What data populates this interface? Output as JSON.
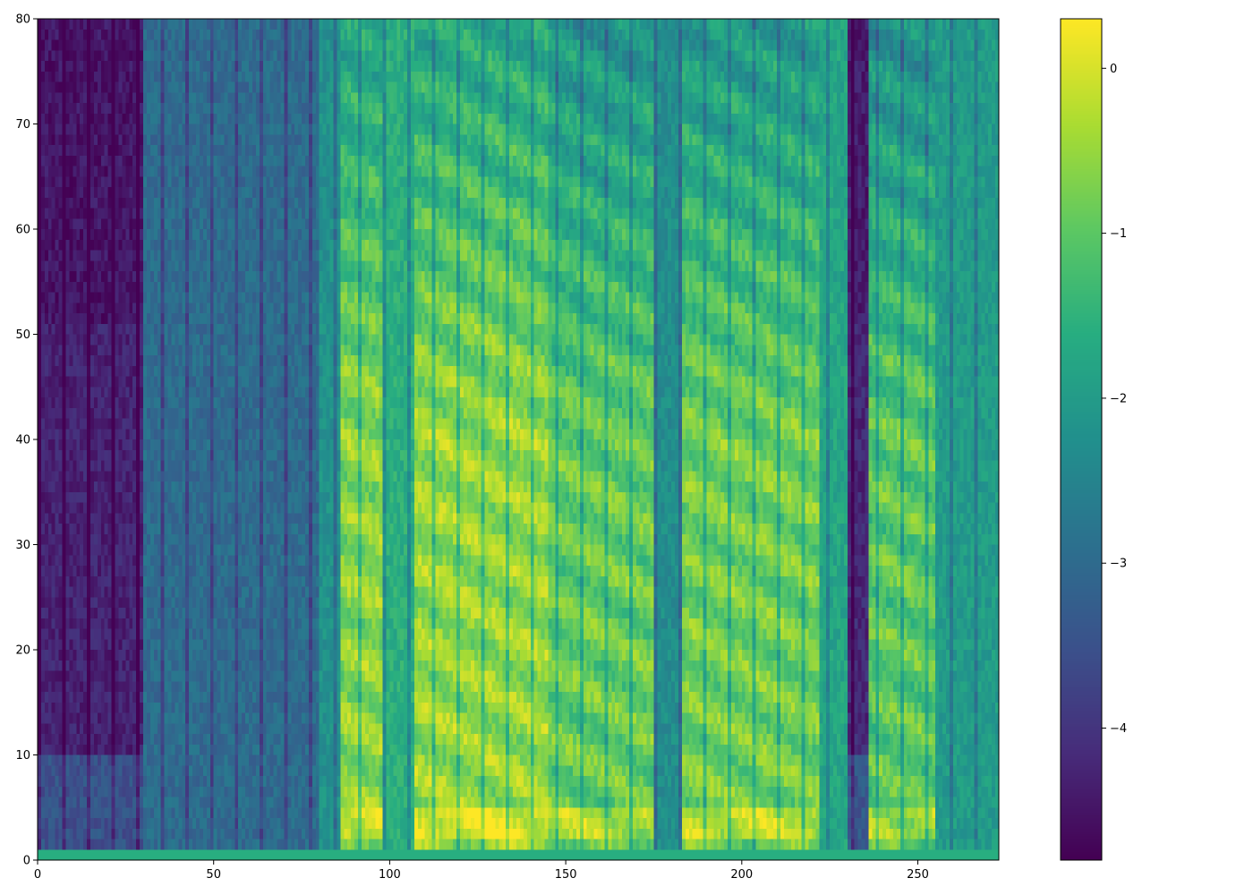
{
  "chart_data": {
    "type": "heatmap",
    "title": "",
    "xlabel": "",
    "ylabel": "",
    "xlim": [
      0,
      273
    ],
    "ylim": [
      0,
      80
    ],
    "x_ticks": [
      "0",
      "50",
      "100",
      "150",
      "200",
      "250"
    ],
    "y_ticks": [
      "0",
      "10",
      "20",
      "30",
      "40",
      "50",
      "60",
      "70",
      "80"
    ],
    "colorbar": {
      "colormap": "viridis",
      "range": [
        -4.8,
        0.3
      ],
      "ticks": [
        "0",
        "−1",
        "−2",
        "−3",
        "−4"
      ],
      "tick_values": [
        0,
        -1,
        -2,
        -3,
        -4
      ]
    },
    "grid": false,
    "regions": [
      {
        "frames": [
          0,
          30
        ],
        "level": -4.3
      },
      {
        "frames": [
          30,
          80
        ],
        "level": -3.0
      },
      {
        "frames": [
          80,
          86
        ],
        "level": -2.2
      },
      {
        "frames": [
          86,
          98
        ],
        "level": -0.6
      },
      {
        "frames": [
          98,
          107
        ],
        "level": -1.6
      },
      {
        "frames": [
          107,
          145
        ],
        "level": -0.5
      },
      {
        "frames": [
          145,
          175
        ],
        "level": -0.9
      },
      {
        "frames": [
          175,
          183
        ],
        "level": -2.3
      },
      {
        "frames": [
          183,
          222
        ],
        "level": -0.8
      },
      {
        "frames": [
          222,
          230
        ],
        "level": -1.8
      },
      {
        "frames": [
          230,
          236
        ],
        "level": -4.2
      },
      {
        "frames": [
          236,
          255
        ],
        "level": -1.0
      },
      {
        "frames": [
          255,
          273
        ],
        "level": -2.0
      }
    ]
  }
}
